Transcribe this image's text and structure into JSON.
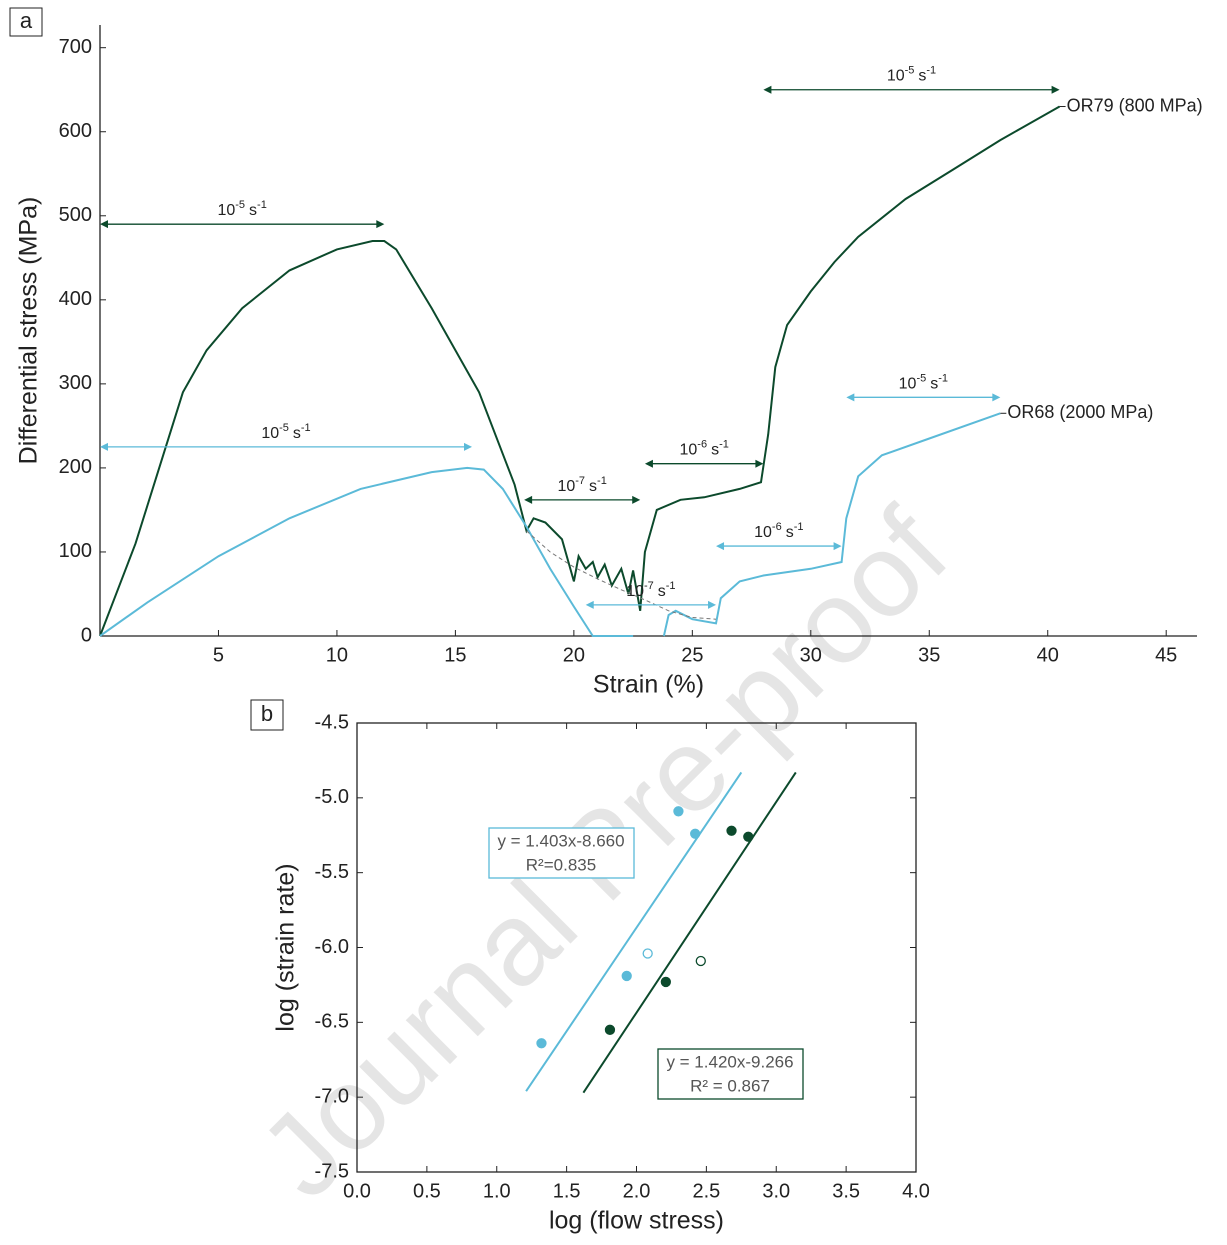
{
  "chart_data": [
    {
      "type": "line",
      "panel": "a",
      "xlabel": "Strain (%)",
      "ylabel": "Differential stress (MPa)",
      "xlim": [
        0,
        46.3
      ],
      "ylim": [
        0,
        727
      ],
      "xticks": [
        5,
        10,
        15,
        20,
        25,
        30,
        35,
        40,
        45
      ],
      "yticks": [
        0,
        100,
        200,
        300,
        400,
        500,
        600,
        700
      ],
      "series": [
        {
          "name": "OR79 (800 MPa)",
          "color": "#0c4a2c",
          "x": [
            0,
            1.5,
            2.5,
            3.5,
            4.5,
            6,
            8,
            10,
            11.5,
            12,
            12.5,
            14,
            16,
            17.5,
            18,
            18.3,
            18.8,
            19.5,
            20,
            20.2,
            20.5,
            20.8,
            21,
            21.3,
            21.6,
            22,
            22.3,
            22.5,
            22.8,
            23,
            23.5,
            24.5,
            25.5,
            27,
            27.9,
            28.2,
            28.5,
            29,
            30,
            31,
            32,
            34,
            36,
            38,
            40.5
          ],
          "values": [
            0,
            110,
            200,
            290,
            340,
            390,
            435,
            460,
            470,
            470,
            460,
            390,
            290,
            180,
            125,
            140,
            135,
            115,
            65,
            95,
            80,
            88,
            70,
            85,
            60,
            80,
            50,
            78,
            30,
            100,
            150,
            162,
            165,
            175,
            183,
            240,
            320,
            370,
            410,
            445,
            475,
            520,
            555,
            590,
            630
          ]
        },
        {
          "name": "OR68 (2000 MPa)",
          "color": "#5bbad8",
          "x": [
            0,
            2,
            5,
            8,
            11,
            14,
            15.5,
            16.2,
            17,
            18,
            19,
            20,
            20.8,
            22.5,
            null,
            23.8,
            24,
            24.3,
            25,
            26,
            26.2,
            27,
            28,
            30,
            31.3,
            31.5,
            32,
            33,
            35,
            38
          ],
          "values": [
            0,
            40,
            95,
            140,
            175,
            195,
            200,
            198,
            175,
            130,
            80,
            35,
            0,
            0,
            null,
            0,
            25,
            30,
            20,
            15,
            45,
            65,
            72,
            80,
            88,
            140,
            190,
            215,
            235,
            265
          ]
        },
        {
          "color": "#777777",
          "dashed": true,
          "x": [
            18,
            19,
            20,
            21,
            22,
            23,
            24,
            25,
            26
          ],
          "values": [
            125,
            100,
            82,
            68,
            55,
            43,
            30,
            22,
            20
          ]
        }
      ],
      "annotations": [
        {
          "x": [
            0,
            12
          ],
          "y": 490,
          "color": "#0c4a2c",
          "base": "10",
          "exp": "-5",
          "unit": "s",
          "unit_exp": "-1"
        },
        {
          "x": [
            28,
            40.5
          ],
          "y": 650,
          "color": "#0c4a2c",
          "base": "10",
          "exp": "-5",
          "unit": "s",
          "unit_exp": "-1"
        },
        {
          "x": [
            23,
            28
          ],
          "y": 205,
          "color": "#0c4a2c",
          "base": "10",
          "exp": "-6",
          "unit": "s",
          "unit_exp": "-1"
        },
        {
          "x": [
            17.9,
            22.8
          ],
          "y": 162,
          "color": "#0c4a2c",
          "base": "10",
          "exp": "-7",
          "unit": "s",
          "unit_exp": "-1"
        },
        {
          "x": [
            0,
            15.7
          ],
          "y": 225,
          "color": "#5bbad8",
          "base": "10",
          "exp": "-5",
          "unit": "s",
          "unit_exp": "-1"
        },
        {
          "x": [
            31.5,
            38
          ],
          "y": 284,
          "color": "#5bbad8",
          "base": "10",
          "exp": "-5",
          "unit": "s",
          "unit_exp": "-1"
        },
        {
          "x": [
            26,
            31.3
          ],
          "y": 107,
          "color": "#5bbad8",
          "base": "10",
          "exp": "-6",
          "unit": "s",
          "unit_exp": "-1"
        },
        {
          "x": [
            20.5,
            26
          ],
          "y": 37,
          "color": "#5bbad8",
          "base": "10",
          "exp": "-7",
          "unit": "s",
          "unit_exp": "-1"
        }
      ]
    },
    {
      "type": "scatter",
      "panel": "b",
      "xlabel": "log (flow stress)",
      "ylabel": "log (strain rate)",
      "xlim": [
        0,
        4
      ],
      "ylim": [
        -7.5,
        -4.5
      ],
      "xticks": [
        {
          "value": 0,
          "label": "0.0"
        },
        0.5,
        {
          "value": 1,
          "label": "1.0"
        },
        1.5,
        {
          "value": 2,
          "label": "2.0"
        },
        2.5,
        {
          "value": 3,
          "label": "3.0"
        },
        3.5,
        {
          "value": 4,
          "label": "4.0"
        }
      ],
      "yticks": [
        -4.5,
        {
          "value": -5,
          "label": "-5.0"
        },
        -5.5,
        {
          "value": -6,
          "label": "-6.0"
        },
        -6.5,
        {
          "value": -7,
          "label": "-7.0"
        },
        -7.5
      ],
      "series": [
        {
          "color": "#5bbad8",
          "x": [
            1.32,
            1.93,
            2.3,
            2.42
          ],
          "values": [
            -6.64,
            -6.19,
            -5.09,
            -5.24
          ]
        },
        {
          "color": "#5bbad8",
          "hollow": true,
          "x": [
            2.08
          ],
          "values": [
            -6.04
          ]
        },
        {
          "color": "#0c4a2c",
          "x": [
            1.81,
            2.21,
            2.68,
            2.8
          ],
          "values": [
            -6.55,
            -6.23,
            -5.22,
            -5.26
          ]
        },
        {
          "color": "#0c4a2c",
          "hollow": true,
          "x": [
            2.46
          ],
          "values": [
            -6.09
          ]
        },
        {
          "color": "#5bbad8",
          "style": "line",
          "x": [
            1.21,
            2.75
          ],
          "values": [
            -6.96,
            -4.83
          ]
        },
        {
          "color": "#0c4a2c",
          "style": "line",
          "x": [
            1.62,
            3.14
          ],
          "values": [
            -6.97,
            -4.83
          ]
        }
      ],
      "annotations": [
        {
          "color": "#5bbad8",
          "lines": [
            "y = 1.403x-8.660",
            "R²=0.835"
          ]
        },
        {
          "color": "#0c4a2c",
          "lines": [
            "y = 1.420x-9.266",
            "R² = 0.867"
          ]
        }
      ]
    }
  ],
  "watermark": "Journal Pre-proof"
}
